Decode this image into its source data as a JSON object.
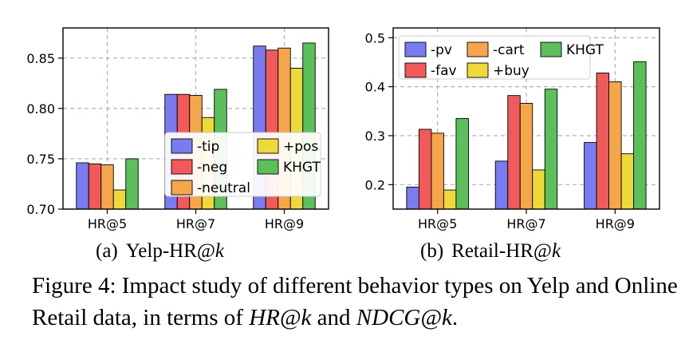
{
  "chart_data": [
    {
      "type": "bar",
      "caption_prefix": "(a)",
      "caption_main": "Yelp-HR@",
      "caption_var": "k",
      "categories": [
        "HR@5",
        "HR@7",
        "HR@9"
      ],
      "ylim": [
        0.7,
        0.88
      ],
      "yticks": [
        "0.70",
        "0.75",
        "0.80",
        "0.85"
      ],
      "grid": true,
      "legend_position": "lower-right",
      "series": [
        {
          "name": "-tip",
          "color": "#7b7bf0",
          "values": [
            0.746,
            0.814,
            0.862
          ]
        },
        {
          "name": "-neg",
          "color": "#f05a5a",
          "values": [
            0.745,
            0.814,
            0.858
          ]
        },
        {
          "name": "-neutral",
          "color": "#f5a54a",
          "values": [
            0.744,
            0.813,
            0.86
          ]
        },
        {
          "name": "+pos",
          "color": "#eed83a",
          "values": [
            0.719,
            0.791,
            0.84
          ]
        },
        {
          "name": "KHGT",
          "color": "#5cbf5c",
          "values": [
            0.75,
            0.819,
            0.865
          ]
        }
      ]
    },
    {
      "type": "bar",
      "caption_prefix": "(b)",
      "caption_main": "Retail-HR@",
      "caption_var": "k",
      "categories": [
        "HR@5",
        "HR@7",
        "HR@9"
      ],
      "ylim": [
        0.15,
        0.52
      ],
      "yticks": [
        "0.2",
        "0.3",
        "0.4",
        "0.5"
      ],
      "grid": true,
      "legend_position": "upper-left",
      "series": [
        {
          "name": "-pv",
          "color": "#7b7bf0",
          "values": [
            0.195,
            0.248,
            0.286
          ]
        },
        {
          "name": "-fav",
          "color": "#f05a5a",
          "values": [
            0.313,
            0.382,
            0.428
          ]
        },
        {
          "name": "-cart",
          "color": "#f5a54a",
          "values": [
            0.305,
            0.366,
            0.41
          ]
        },
        {
          "name": "+buy",
          "color": "#eed83a",
          "values": [
            0.189,
            0.23,
            0.263
          ]
        },
        {
          "name": "KHGT",
          "color": "#5cbf5c",
          "values": [
            0.335,
            0.395,
            0.451
          ]
        }
      ]
    }
  ],
  "figure_caption": {
    "text1": "Figure 4: Impact study of different behavior types on Yelp and Online Retail data, in terms of ",
    "em1": "HR@k",
    "text2": " and ",
    "em2": "NDCG@k",
    "text3": "."
  }
}
